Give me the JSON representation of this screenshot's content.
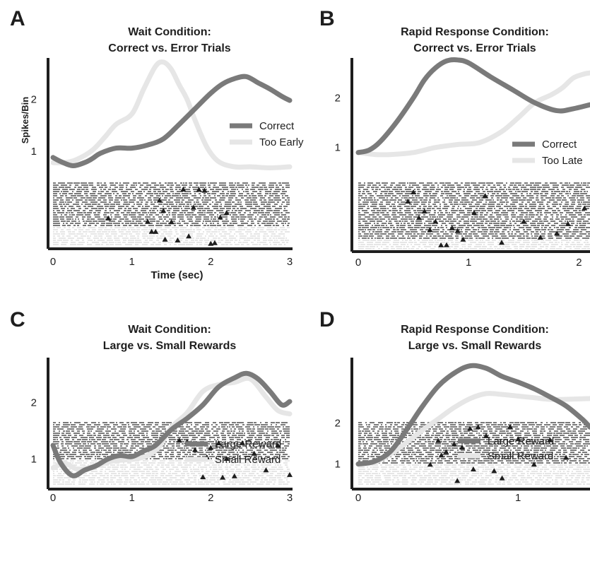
{
  "colors": {
    "dark": "#7a7a7a",
    "light": "#e6e6e6",
    "axis": "#1e1e1e",
    "marker": "#1e1e1e"
  },
  "chart_data": [
    {
      "panel": "A",
      "type": "line",
      "title": [
        "Wait Condition:",
        "Correct vs. Error Trials"
      ],
      "xlabel": "Time (sec)",
      "ylabel": "Spikes/Bin",
      "xlim": [
        0,
        3
      ],
      "ylim": [
        0.4,
        2.8
      ],
      "xticks": [
        0,
        1,
        2,
        3
      ],
      "yticks": [
        1,
        2
      ],
      "legend": "right",
      "raster": true,
      "series": [
        {
          "name": "Correct",
          "color": "dark",
          "x": [
            0,
            0.1,
            0.25,
            0.4,
            0.5,
            0.6,
            0.8,
            1.0,
            1.2,
            1.4,
            1.6,
            1.8,
            2.0,
            2.15,
            2.3,
            2.45,
            2.6,
            2.75,
            2.9,
            3.0
          ],
          "y": [
            0.88,
            0.8,
            0.72,
            0.78,
            0.86,
            0.96,
            1.06,
            1.06,
            1.12,
            1.24,
            1.52,
            1.82,
            2.12,
            2.3,
            2.4,
            2.44,
            2.32,
            2.2,
            2.06,
            1.98
          ]
        },
        {
          "name": "Too Early",
          "color": "light",
          "x": [
            0,
            0.15,
            0.3,
            0.5,
            0.65,
            0.8,
            1.0,
            1.15,
            1.3,
            1.4,
            1.5,
            1.6,
            1.7,
            1.8,
            1.95,
            2.1,
            2.3,
            2.5,
            2.75,
            3.0
          ],
          "y": [
            0.78,
            0.78,
            0.84,
            1.02,
            1.26,
            1.52,
            1.72,
            2.2,
            2.64,
            2.72,
            2.58,
            2.28,
            2.0,
            1.6,
            1.08,
            0.8,
            0.7,
            0.7,
            0.68,
            0.7
          ]
        }
      ],
      "raster_events": [
        1.35,
        1.42,
        1.5,
        1.58,
        1.65,
        1.72,
        1.78,
        1.85,
        1.92,
        2.0,
        2.05,
        2.12,
        2.2,
        0.7,
        1.2,
        1.25,
        1.3,
        1.4
      ]
    },
    {
      "panel": "B",
      "type": "line",
      "title": [
        "Rapid Response Condition:",
        "Correct vs. Error Trials"
      ],
      "xlabel": "",
      "ylabel": "",
      "xlim": [
        0,
        2.1
      ],
      "ylim": [
        0.3,
        2.8
      ],
      "xticks": [
        0,
        1,
        2
      ],
      "yticks": [
        1,
        2
      ],
      "legend": "right",
      "raster": true,
      "series": [
        {
          "name": "Correct",
          "color": "dark",
          "x": [
            0,
            0.1,
            0.2,
            0.35,
            0.5,
            0.6,
            0.7,
            0.8,
            0.9,
            1.0,
            1.2,
            1.4,
            1.6,
            1.8,
            1.95,
            2.1
          ],
          "y": [
            0.9,
            0.95,
            1.12,
            1.52,
            2.0,
            2.36,
            2.6,
            2.74,
            2.76,
            2.7,
            2.42,
            2.16,
            1.9,
            1.74,
            1.78,
            1.86
          ]
        },
        {
          "name": "Too Late",
          "color": "light",
          "x": [
            0,
            0.15,
            0.3,
            0.5,
            0.7,
            0.9,
            1.1,
            1.3,
            1.45,
            1.6,
            1.75,
            1.85,
            1.95,
            2.05,
            2.1
          ],
          "y": [
            0.9,
            0.86,
            0.86,
            0.9,
            1.0,
            1.06,
            1.1,
            1.32,
            1.6,
            1.9,
            2.06,
            2.2,
            2.4,
            2.48,
            2.5
          ]
        }
      ],
      "raster_events": [
        0.45,
        0.5,
        0.55,
        0.6,
        0.65,
        0.7,
        0.75,
        0.8,
        0.85,
        0.9,
        0.95,
        1.05,
        1.15,
        1.3,
        1.5,
        1.65,
        1.8,
        1.9,
        2.05
      ]
    },
    {
      "panel": "C",
      "type": "line",
      "title": [
        "Wait Condition:",
        "Large vs. Small Rewards"
      ],
      "xlabel": "",
      "ylabel": "",
      "xlim": [
        0,
        3
      ],
      "ylim": [
        0.4,
        2.8
      ],
      "xticks": [
        0,
        1,
        2,
        3
      ],
      "yticks": [
        1,
        2
      ],
      "legend": "right",
      "raster": true,
      "series": [
        {
          "name": "Large Reward",
          "color": "dark",
          "x": [
            0,
            0.1,
            0.25,
            0.4,
            0.55,
            0.7,
            0.85,
            1.0,
            1.15,
            1.3,
            1.5,
            1.7,
            1.9,
            2.1,
            2.3,
            2.45,
            2.6,
            2.75,
            2.9,
            3.0
          ],
          "y": [
            1.24,
            0.92,
            0.7,
            0.8,
            0.88,
            1.0,
            1.06,
            1.04,
            1.14,
            1.24,
            1.52,
            1.72,
            1.96,
            2.28,
            2.44,
            2.52,
            2.42,
            2.2,
            1.96,
            2.02
          ]
        },
        {
          "name": "Small Reward",
          "color": "light",
          "x": [
            0,
            0.15,
            0.3,
            0.45,
            0.6,
            0.75,
            0.9,
            1.05,
            1.2,
            1.35,
            1.5,
            1.7,
            1.9,
            2.1,
            2.3,
            2.5,
            2.7,
            2.85,
            3.0
          ],
          "y": [
            0.84,
            0.92,
            0.82,
            0.84,
            0.9,
            0.96,
            0.98,
            1.0,
            1.06,
            1.22,
            1.56,
            1.82,
            2.2,
            2.32,
            2.36,
            2.42,
            2.1,
            1.86,
            1.8
          ]
        }
      ],
      "raster_events": [
        1.6,
        1.7,
        1.8,
        1.9,
        2.0,
        2.1,
        2.2,
        2.3,
        2.4,
        2.55,
        2.7,
        2.85,
        3.0,
        1.75,
        1.95,
        2.15
      ]
    },
    {
      "panel": "D",
      "type": "line",
      "title": [
        "Rapid Response Condition:",
        "Large vs. Small Rewards"
      ],
      "xlabel": "",
      "ylabel": "",
      "xlim": [
        0,
        1.45
      ],
      "ylim": [
        0.3,
        3.6
      ],
      "xticks": [
        0,
        1
      ],
      "yticks": [
        1,
        2
      ],
      "legend": "right",
      "raster": true,
      "series": [
        {
          "name": "Large Reward",
          "color": "dark",
          "x": [
            0,
            0.1,
            0.2,
            0.3,
            0.4,
            0.5,
            0.6,
            0.7,
            0.8,
            0.9,
            1.0,
            1.1,
            1.2,
            1.3,
            1.4,
            1.45
          ],
          "y": [
            1.0,
            1.06,
            1.3,
            1.82,
            2.4,
            2.9,
            3.22,
            3.4,
            3.34,
            3.14,
            3.0,
            2.84,
            2.64,
            2.42,
            2.1,
            1.9
          ]
        },
        {
          "name": "Small Reward",
          "color": "light",
          "x": [
            0,
            0.1,
            0.2,
            0.3,
            0.4,
            0.5,
            0.6,
            0.7,
            0.8,
            0.9,
            1.0,
            1.1,
            1.2,
            1.3,
            1.45
          ],
          "y": [
            1.0,
            1.04,
            1.24,
            1.52,
            1.82,
            2.1,
            2.38,
            2.6,
            2.72,
            2.7,
            2.66,
            2.62,
            2.58,
            2.58,
            2.6
          ]
        }
      ],
      "raster_events": [
        0.5,
        0.55,
        0.6,
        0.65,
        0.7,
        0.75,
        0.8,
        0.85,
        0.9,
        1.0,
        1.1,
        1.2,
        1.3,
        0.45,
        0.52,
        0.62,
        0.72,
        0.95
      ]
    }
  ]
}
